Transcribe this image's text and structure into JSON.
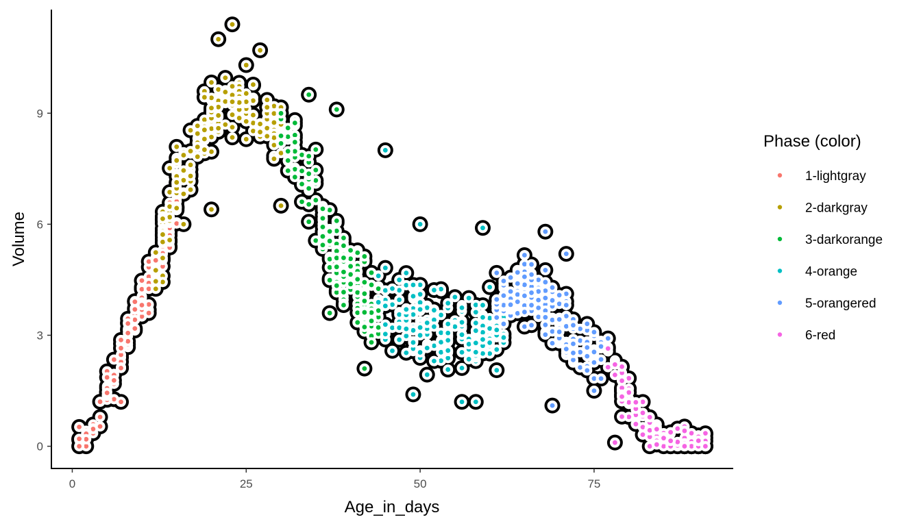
{
  "chart_data": {
    "type": "scatter",
    "xlabel": "Age_in_days",
    "ylabel": "Volume",
    "xlim": [
      -3,
      95
    ],
    "ylim": [
      -0.6,
      11.8
    ],
    "xticks": [
      0,
      25,
      50,
      75
    ],
    "yticks": [
      0,
      3,
      6,
      9
    ],
    "grid": false,
    "legend": {
      "title": "Phase (color)",
      "placement": "right"
    },
    "point_style": {
      "outline_color": "#000000",
      "outline": "thick black ring behind each colored point"
    },
    "series": [
      {
        "name": "1-lightgray",
        "color": "#F8766D",
        "anchors": [
          [
            1,
            0.1
          ],
          [
            4,
            0.8
          ],
          [
            6,
            2.0
          ],
          [
            8,
            3.0
          ],
          [
            10,
            4.0
          ],
          [
            12,
            4.8
          ],
          [
            14,
            5.8
          ],
          [
            15,
            6.8
          ]
        ],
        "spread": 0.4,
        "count": 130,
        "outliers": [
          [
            1,
            0.0
          ],
          [
            1,
            0.2
          ],
          [
            7,
            1.2
          ],
          [
            11,
            3.6
          ]
        ]
      },
      {
        "name": "2-darkgray",
        "color": "#B79F00",
        "anchors": [
          [
            12,
            5.0
          ],
          [
            15,
            7.0
          ],
          [
            18,
            8.0
          ],
          [
            20,
            9.0
          ],
          [
            22,
            9.3
          ],
          [
            25,
            9.3
          ],
          [
            28,
            8.8
          ],
          [
            30,
            8.5
          ]
        ],
        "spread": 0.7,
        "count": 190,
        "outliers": [
          [
            21,
            11.0
          ],
          [
            23,
            11.4
          ],
          [
            27,
            10.7
          ],
          [
            25,
            10.3
          ],
          [
            20,
            6.4
          ],
          [
            16,
            6.0
          ],
          [
            30,
            6.5
          ]
        ]
      },
      {
        "name": "3-darkorange",
        "color": "#00BA38",
        "anchors": [
          [
            30,
            8.5
          ],
          [
            33,
            7.5
          ],
          [
            36,
            6.0
          ],
          [
            38,
            5.0
          ],
          [
            40,
            4.5
          ],
          [
            42,
            4.0
          ],
          [
            44,
            3.6
          ]
        ],
        "spread": 0.85,
        "count": 200,
        "outliers": [
          [
            38,
            9.1
          ],
          [
            34,
            9.5
          ],
          [
            42,
            2.1
          ],
          [
            37,
            3.6
          ]
        ]
      },
      {
        "name": "4-orange",
        "color": "#00BFC4",
        "anchors": [
          [
            44,
            3.8
          ],
          [
            48,
            3.5
          ],
          [
            52,
            3.2
          ],
          [
            55,
            3.0
          ],
          [
            58,
            3.0
          ],
          [
            62,
            3.3
          ]
        ],
        "spread": 0.9,
        "count": 200,
        "outliers": [
          [
            45,
            8.0
          ],
          [
            49,
            1.4
          ],
          [
            56,
            1.2
          ],
          [
            58,
            1.2
          ],
          [
            50,
            6.0
          ],
          [
            59,
            5.9
          ]
        ]
      },
      {
        "name": "5-orangered",
        "color": "#619CFF",
        "anchors": [
          [
            61,
            4.0
          ],
          [
            64,
            4.2
          ],
          [
            67,
            4.0
          ],
          [
            70,
            3.5
          ],
          [
            73,
            2.8
          ],
          [
            77,
            2.5
          ]
        ],
        "spread": 0.7,
        "count": 170,
        "outliers": [
          [
            69,
            1.1
          ],
          [
            68,
            5.8
          ],
          [
            71,
            5.2
          ],
          [
            75,
            1.5
          ]
        ]
      },
      {
        "name": "6-red",
        "color": "#F564E3",
        "anchors": [
          [
            77,
            2.3
          ],
          [
            79,
            1.7
          ],
          [
            81,
            1.0
          ],
          [
            83,
            0.5
          ],
          [
            85,
            0.2
          ],
          [
            88,
            0.1
          ],
          [
            91,
            0.1
          ]
        ],
        "spread": 0.45,
        "count": 120,
        "outliers": [
          [
            78,
            0.1
          ],
          [
            79,
            0.8
          ],
          [
            90,
            0.15
          ]
        ]
      }
    ]
  }
}
